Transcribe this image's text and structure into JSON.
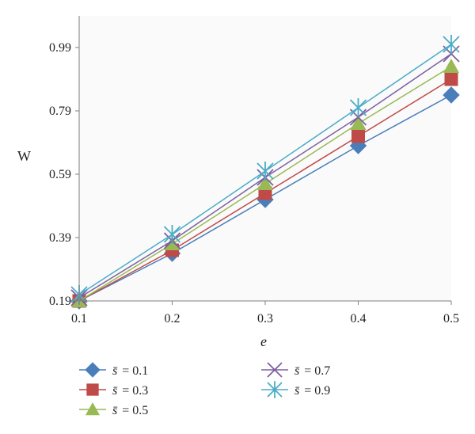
{
  "chart_data": {
    "type": "line",
    "xlabel": "e",
    "ylabel": "W",
    "x": [
      0.1,
      0.2,
      0.3,
      0.4,
      0.5
    ],
    "x_ticks": [
      "0.1",
      "0.2",
      "0.3",
      "0.4",
      "0.5"
    ],
    "y_ticks": [
      "0.19",
      "0.39",
      "0.59",
      "0.79",
      "0.99"
    ],
    "xlim": [
      0.1,
      0.5
    ],
    "ylim": [
      0.19,
      1.09
    ],
    "grid": false,
    "legend_position": "bottom",
    "series": [
      {
        "name": "s̄ = 0.1",
        "symbol": "s̄",
        "value_text": "= 0.1",
        "marker": "diamond",
        "color": "#4a7ebb",
        "values": [
          0.19,
          0.34,
          0.51,
          0.68,
          0.84
        ]
      },
      {
        "name": "s̄ = 0.3",
        "symbol": "s̄",
        "value_text": "= 0.3",
        "marker": "square",
        "color": "#be4b48",
        "values": [
          0.19,
          0.35,
          0.53,
          0.71,
          0.89
        ]
      },
      {
        "name": "s̄ = 0.5",
        "symbol": "s̄",
        "value_text": "= 0.5",
        "marker": "triangle",
        "color": "#98b954",
        "values": [
          0.19,
          0.37,
          0.56,
          0.75,
          0.93
        ]
      },
      {
        "name": "s̄ = 0.7",
        "symbol": "s̄",
        "value_text": "= 0.7",
        "marker": "x",
        "color": "#7d60a0",
        "values": [
          0.2,
          0.38,
          0.58,
          0.77,
          0.97
        ]
      },
      {
        "name": "s̄ = 0.9",
        "symbol": "s̄",
        "value_text": "= 0.9",
        "marker": "asterisk",
        "color": "#4bacc6",
        "values": [
          0.21,
          0.4,
          0.6,
          0.8,
          1.0
        ]
      }
    ]
  }
}
